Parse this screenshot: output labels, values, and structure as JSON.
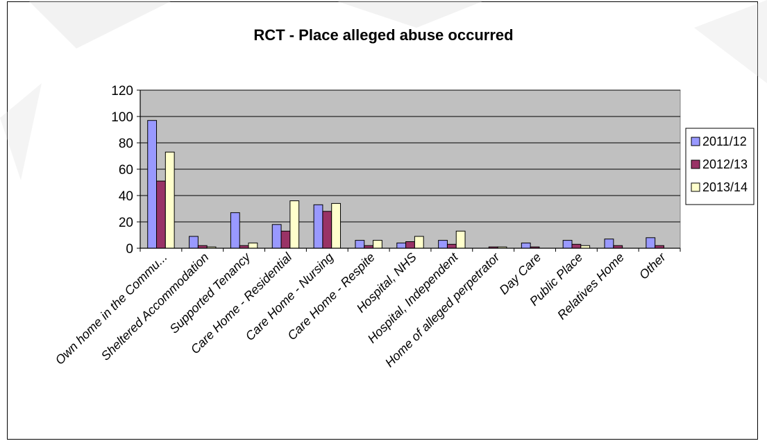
{
  "chart_data": {
    "type": "bar",
    "title": "RCT - Place alleged abuse occurred",
    "xlabel": "",
    "ylabel": "",
    "ylim": [
      0,
      120
    ],
    "yticks": [
      0,
      20,
      40,
      60,
      80,
      100,
      120
    ],
    "grid": true,
    "legend_position": "right",
    "categories": [
      "Own home in the Commu...",
      "Sheltered Accommodation",
      "Supported Tenancy",
      "Care Home - Residential",
      "Care Home - Nursing",
      "Care Home - Respite",
      "Hospital, NHS",
      "Hospital, Independent",
      "Home of alleged perpetrator",
      "Day Care",
      "Public Place",
      "Relatives Home",
      "Other"
    ],
    "series": [
      {
        "name": "2011/12",
        "color": "#9999ff",
        "values": [
          97,
          9,
          27,
          18,
          33,
          6,
          4,
          6,
          0,
          4,
          6,
          7,
          8
        ]
      },
      {
        "name": "2012/13",
        "color": "#993366",
        "values": [
          51,
          2,
          2,
          13,
          28,
          2,
          5,
          3,
          1,
          1,
          3,
          2,
          2
        ]
      },
      {
        "name": "2013/14",
        "color": "#ffffcc",
        "values": [
          73,
          1,
          4,
          36,
          34,
          6,
          9,
          13,
          1,
          0,
          2,
          0,
          0
        ]
      }
    ],
    "plot_background": "#c0c0c0"
  }
}
